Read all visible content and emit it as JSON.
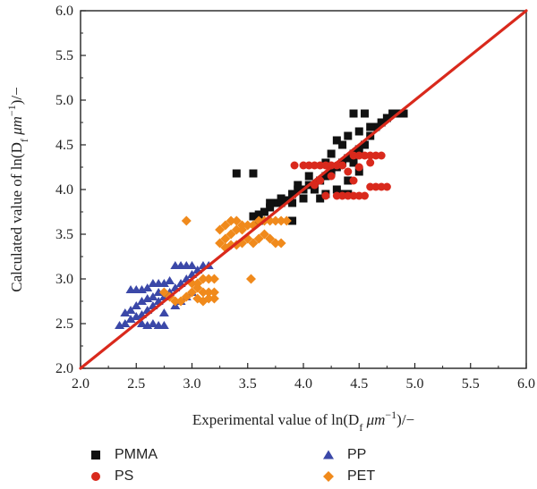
{
  "chart_data": {
    "type": "scatter",
    "title": "",
    "xlabel": {
      "pre": "Experimental value of ln(D",
      "sub": "f",
      "mid": " μm",
      "sup": "−1",
      "post": ")/−"
    },
    "ylabel": {
      "pre": "Calculated value of ln(D",
      "sub": "f",
      "mid": " μm",
      "sup": "−1",
      "post": ")/−"
    },
    "xlim": [
      2.0,
      6.0
    ],
    "ylim": [
      2.0,
      6.0
    ],
    "xticks": [
      "2.0",
      "2.5",
      "3.0",
      "3.5",
      "4.0",
      "4.5",
      "5.0",
      "5.5",
      "6.0"
    ],
    "yticks": [
      "2.0",
      "2.5",
      "3.0",
      "3.5",
      "4.0",
      "4.5",
      "5.0",
      "5.5",
      "6.0"
    ],
    "reference_line": {
      "from": [
        2.0,
        2.0
      ],
      "to": [
        6.0,
        6.0
      ],
      "color": "#d9291c"
    },
    "legend": "bottom",
    "series": [
      {
        "name": "PMMA",
        "marker": "square",
        "color": "#111111",
        "points": [
          [
            3.55,
            3.7
          ],
          [
            3.6,
            3.72
          ],
          [
            3.65,
            3.75
          ],
          [
            3.7,
            3.8
          ],
          [
            3.75,
            3.85
          ],
          [
            3.8,
            3.85
          ],
          [
            3.85,
            3.88
          ],
          [
            3.9,
            3.95
          ],
          [
            3.95,
            4.0
          ],
          [
            4.0,
            4.0
          ],
          [
            4.05,
            4.05
          ],
          [
            4.1,
            4.05
          ],
          [
            4.15,
            4.1
          ],
          [
            4.2,
            4.15
          ],
          [
            4.25,
            4.2
          ],
          [
            4.3,
            4.25
          ],
          [
            4.35,
            4.3
          ],
          [
            4.4,
            4.35
          ],
          [
            4.45,
            4.4
          ],
          [
            4.5,
            4.45
          ],
          [
            4.55,
            4.5
          ],
          [
            4.6,
            4.6
          ],
          [
            4.65,
            4.7
          ],
          [
            4.7,
            4.75
          ],
          [
            4.75,
            4.8
          ],
          [
            4.8,
            4.85
          ],
          [
            4.85,
            4.85
          ],
          [
            4.9,
            4.85
          ],
          [
            4.45,
            4.85
          ],
          [
            4.55,
            4.85
          ],
          [
            4.35,
            4.5
          ],
          [
            4.4,
            4.6
          ],
          [
            4.3,
            4.55
          ],
          [
            4.5,
            4.65
          ],
          [
            4.6,
            4.7
          ],
          [
            4.25,
            4.4
          ],
          [
            4.2,
            4.3
          ],
          [
            4.1,
            4.0
          ],
          [
            4.0,
            3.9
          ],
          [
            3.9,
            3.85
          ],
          [
            3.8,
            3.9
          ],
          [
            3.7,
            3.85
          ],
          [
            3.6,
            3.65
          ],
          [
            3.4,
            4.18
          ],
          [
            3.55,
            4.18
          ],
          [
            3.9,
            3.65
          ],
          [
            4.4,
            3.95
          ],
          [
            4.3,
            4.0
          ],
          [
            4.35,
            3.95
          ],
          [
            4.5,
            4.2
          ],
          [
            4.45,
            4.3
          ],
          [
            4.4,
            4.1
          ],
          [
            4.2,
            3.95
          ],
          [
            4.15,
            3.9
          ],
          [
            3.95,
            4.05
          ],
          [
            4.05,
            4.15
          ]
        ]
      },
      {
        "name": "PS",
        "marker": "circle",
        "color": "#d9291c",
        "points": [
          [
            3.92,
            4.27
          ],
          [
            4.0,
            4.27
          ],
          [
            4.05,
            4.27
          ],
          [
            4.1,
            4.27
          ],
          [
            4.15,
            4.27
          ],
          [
            4.2,
            4.27
          ],
          [
            4.25,
            4.27
          ],
          [
            4.3,
            4.27
          ],
          [
            4.35,
            4.27
          ],
          [
            4.45,
            4.38
          ],
          [
            4.5,
            4.38
          ],
          [
            4.55,
            4.38
          ],
          [
            4.6,
            4.38
          ],
          [
            4.65,
            4.38
          ],
          [
            4.7,
            4.38
          ],
          [
            4.2,
            3.93
          ],
          [
            4.3,
            3.93
          ],
          [
            4.35,
            3.93
          ],
          [
            4.4,
            3.93
          ],
          [
            4.45,
            3.93
          ],
          [
            4.5,
            3.93
          ],
          [
            4.55,
            3.93
          ],
          [
            4.6,
            4.03
          ],
          [
            4.65,
            4.03
          ],
          [
            4.7,
            4.03
          ],
          [
            4.75,
            4.03
          ],
          [
            4.1,
            4.05
          ],
          [
            4.15,
            4.1
          ],
          [
            4.25,
            4.15
          ],
          [
            4.4,
            4.2
          ],
          [
            4.5,
            4.25
          ],
          [
            4.6,
            4.3
          ],
          [
            4.45,
            4.1
          ]
        ]
      },
      {
        "name": "PP",
        "marker": "triangle",
        "color": "#3b48a8",
        "points": [
          [
            2.35,
            2.48
          ],
          [
            2.4,
            2.5
          ],
          [
            2.45,
            2.55
          ],
          [
            2.5,
            2.58
          ],
          [
            2.55,
            2.6
          ],
          [
            2.6,
            2.65
          ],
          [
            2.65,
            2.7
          ],
          [
            2.7,
            2.75
          ],
          [
            2.75,
            2.8
          ],
          [
            2.8,
            2.85
          ],
          [
            2.85,
            2.9
          ],
          [
            2.9,
            2.95
          ],
          [
            2.95,
            3.0
          ],
          [
            3.0,
            3.05
          ],
          [
            3.05,
            3.1
          ],
          [
            3.1,
            3.15
          ],
          [
            3.15,
            3.15
          ],
          [
            2.85,
            3.15
          ],
          [
            2.9,
            3.15
          ],
          [
            2.95,
            3.15
          ],
          [
            3.0,
            3.15
          ],
          [
            2.45,
            2.88
          ],
          [
            2.5,
            2.88
          ],
          [
            2.55,
            2.88
          ],
          [
            2.6,
            2.9
          ],
          [
            2.65,
            2.95
          ],
          [
            2.7,
            2.95
          ],
          [
            2.75,
            2.95
          ],
          [
            2.8,
            2.98
          ],
          [
            2.55,
            2.5
          ],
          [
            2.6,
            2.48
          ],
          [
            2.65,
            2.5
          ],
          [
            2.7,
            2.48
          ],
          [
            2.75,
            2.48
          ],
          [
            2.5,
            2.7
          ],
          [
            2.55,
            2.75
          ],
          [
            2.6,
            2.78
          ],
          [
            2.65,
            2.8
          ],
          [
            2.7,
            2.85
          ],
          [
            2.45,
            2.65
          ],
          [
            2.4,
            2.62
          ],
          [
            2.75,
            2.62
          ],
          [
            2.85,
            2.7
          ],
          [
            2.9,
            2.75
          ],
          [
            3.0,
            2.85
          ],
          [
            2.95,
            2.8
          ]
        ]
      },
      {
        "name": "PET",
        "marker": "diamond",
        "color": "#f08a1c",
        "points": [
          [
            2.75,
            2.85
          ],
          [
            2.8,
            2.8
          ],
          [
            2.85,
            2.75
          ],
          [
            2.9,
            2.75
          ],
          [
            2.95,
            2.8
          ],
          [
            3.0,
            2.85
          ],
          [
            3.05,
            2.9
          ],
          [
            3.1,
            2.85
          ],
          [
            3.15,
            2.85
          ],
          [
            3.2,
            2.85
          ],
          [
            2.95,
            3.65
          ],
          [
            3.0,
            2.95
          ],
          [
            3.05,
            2.95
          ],
          [
            3.1,
            3.0
          ],
          [
            3.15,
            3.0
          ],
          [
            3.2,
            3.0
          ],
          [
            3.25,
            3.4
          ],
          [
            3.3,
            3.45
          ],
          [
            3.35,
            3.5
          ],
          [
            3.4,
            3.55
          ],
          [
            3.45,
            3.55
          ],
          [
            3.5,
            3.6
          ],
          [
            3.55,
            3.6
          ],
          [
            3.6,
            3.65
          ],
          [
            3.65,
            3.65
          ],
          [
            3.7,
            3.65
          ],
          [
            3.75,
            3.65
          ],
          [
            3.8,
            3.65
          ],
          [
            3.85,
            3.65
          ],
          [
            3.3,
            3.6
          ],
          [
            3.35,
            3.65
          ],
          [
            3.4,
            3.65
          ],
          [
            3.45,
            3.6
          ],
          [
            3.25,
            3.55
          ],
          [
            3.3,
            3.35
          ],
          [
            3.35,
            3.38
          ],
          [
            3.4,
            3.38
          ],
          [
            3.45,
            3.4
          ],
          [
            3.5,
            3.45
          ],
          [
            3.55,
            3.4
          ],
          [
            3.6,
            3.45
          ],
          [
            3.65,
            3.5
          ],
          [
            3.7,
            3.45
          ],
          [
            3.75,
            3.4
          ],
          [
            3.8,
            3.4
          ],
          [
            3.53,
            3.0
          ],
          [
            3.05,
            2.78
          ],
          [
            3.1,
            2.75
          ],
          [
            3.15,
            2.78
          ],
          [
            3.2,
            2.78
          ]
        ]
      }
    ]
  }
}
